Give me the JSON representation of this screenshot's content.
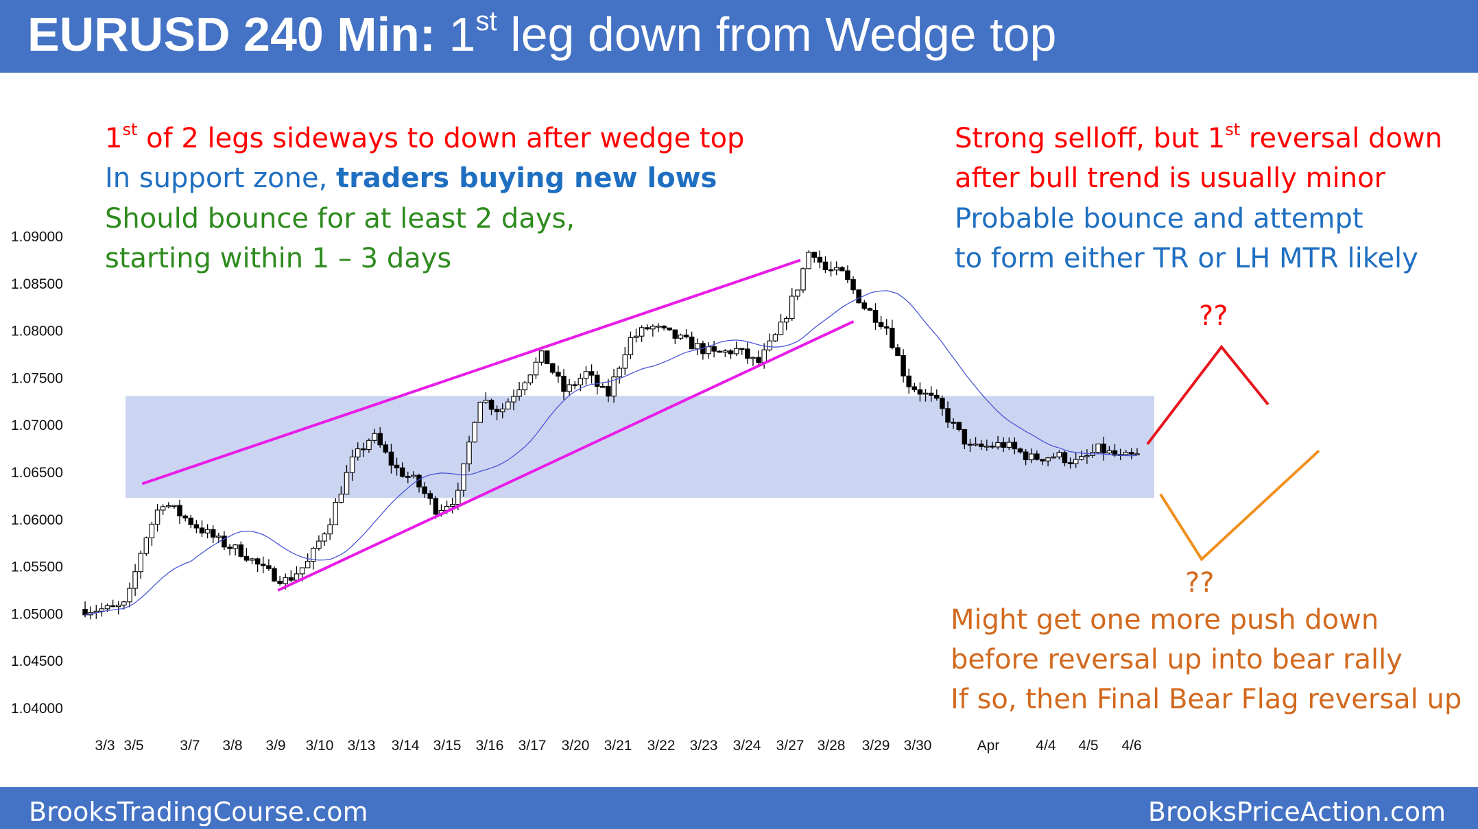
{
  "header": {
    "title_bold": "EURUSD 240 Min:",
    "title_pre": " 1",
    "title_sup": "st",
    "title_post": " leg down from Wedge top"
  },
  "footer": {
    "left": "BrooksTradingCourse.com",
    "right": "BrooksPriceAction.com"
  },
  "notes_left": {
    "line1_pre": "1",
    "line1_sup": "st",
    "line1_post": " of 2 legs sideways to down after wedge top",
    "line2_pre": "In support zone, ",
    "line2_bold": "traders buying new lows",
    "line3": "Should bounce for at least 2 days,",
    "line4": "starting within 1 – 3 days"
  },
  "notes_right": {
    "line1_pre": "Strong selloff, but 1",
    "line1_sup": "st",
    "line1_post": " reversal down",
    "line2": "after bull trend is usually minor",
    "line3": "Probable bounce and attempt",
    "line4": "to form either TR or LH MTR likely"
  },
  "notes_bottom": {
    "line1": "Might get one more push down",
    "line2": "before reversal up into bear rally",
    "line3": "If so, then Final Bear Flag reversal up"
  },
  "question_up": "??",
  "question_down": "??",
  "colors": {
    "header_bg": "#4472c4",
    "support_zone": "#c5d0f0",
    "wedge_line": "#e81ce8",
    "moving_average": "#4a56d8",
    "scenario_up": "#e8141e",
    "scenario_down": "#f0901e"
  },
  "chart_data": {
    "type": "candlestick",
    "title": "EURUSD 240 Min",
    "ylim": [
      1.04,
      1.0915
    ],
    "y_ticks": [
      "1.09000",
      "1.08500",
      "1.08000",
      "1.07500",
      "1.07000",
      "1.06500",
      "1.06000",
      "1.05500",
      "1.05000",
      "1.04500",
      "1.04000"
    ],
    "y_tick_values": [
      1.09,
      1.085,
      1.08,
      1.075,
      1.07,
      1.065,
      1.06,
      1.055,
      1.05,
      1.045,
      1.04
    ],
    "x_tick_labels": [
      "3/3",
      "3/5",
      "3/7",
      "3/8",
      "3/9",
      "3/10",
      "3/13",
      "3/14",
      "3/15",
      "3/16",
      "3/17",
      "3/20",
      "3/21",
      "3/22",
      "3/23",
      "3/24",
      "3/27",
      "3/28",
      "3/29",
      "3/30",
      "Apr",
      "4/4",
      "4/5",
      "4/6"
    ],
    "support_zone": [
      1.0623,
      1.0731
    ],
    "wedge_upper": [
      [
        1.0638,
        1.0875
      ]
    ],
    "wedge_lower": [
      [
        1.0525,
        1.081
      ]
    ],
    "price_path": [
      [
        "3/3",
        1.0505
      ],
      [
        "3/3",
        1.051
      ],
      [
        "3/5",
        1.0575
      ],
      [
        "3/5",
        1.062
      ],
      [
        "3/5",
        1.0605
      ],
      [
        "3/7",
        1.059
      ],
      [
        "3/7",
        1.0575
      ],
      [
        "3/8",
        1.0565
      ],
      [
        "3/8",
        1.0545
      ],
      [
        "3/9",
        1.0535
      ],
      [
        "3/9",
        1.0555
      ],
      [
        "3/10",
        1.06
      ],
      [
        "3/10",
        1.066
      ],
      [
        "3/13",
        1.069
      ],
      [
        "3/13",
        1.0655
      ],
      [
        "3/14",
        1.064
      ],
      [
        "3/14",
        1.061
      ],
      [
        "3/15",
        1.0625
      ],
      [
        "3/15",
        1.073
      ],
      [
        "3/16",
        1.0715
      ],
      [
        "3/16",
        1.0745
      ],
      [
        "3/17",
        1.0775
      ],
      [
        "3/17",
        1.0735
      ],
      [
        "3/20",
        1.0755
      ],
      [
        "3/20",
        1.073
      ],
      [
        "3/21",
        1.079
      ],
      [
        "3/21",
        1.0805
      ],
      [
        "3/22",
        1.0795
      ],
      [
        "3/22",
        1.0785
      ],
      [
        "3/23",
        1.0775
      ],
      [
        "3/23",
        1.078
      ],
      [
        "3/24",
        1.0765
      ],
      [
        "3/24",
        1.08
      ],
      [
        "3/27",
        1.0845
      ],
      [
        "3/27",
        1.089
      ],
      [
        "3/27",
        1.0865
      ],
      [
        "3/28",
        1.086
      ],
      [
        "3/28",
        1.0825
      ],
      [
        "3/29",
        1.0805
      ],
      [
        "3/29",
        1.0745
      ],
      [
        "3/30",
        1.0725
      ],
      [
        "3/30",
        1.0675
      ],
      [
        "Apr",
        1.068
      ],
      [
        "Apr",
        1.0665
      ],
      [
        "4/4",
        1.0668
      ],
      [
        "4/4",
        1.066
      ],
      [
        "4/5",
        1.0675
      ],
      [
        "4/5",
        1.0665
      ],
      [
        "4/6",
        1.0668
      ],
      [
        "4/6",
        1.066
      ]
    ],
    "scenario_up": [
      [
        1.068,
        1.0783,
        1.0722
      ]
    ],
    "scenario_down": [
      [
        1.0627,
        1.0558,
        1.0673
      ]
    ]
  }
}
